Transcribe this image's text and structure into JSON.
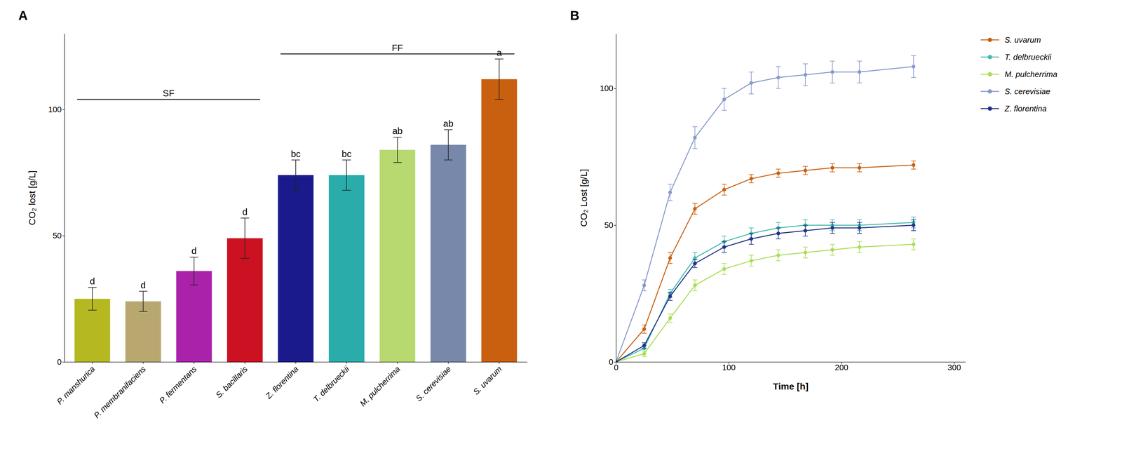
{
  "chart_data": [
    {
      "type": "bar",
      "title": "A",
      "categories": [
        "P. manshurica",
        "P. membranifaciens",
        "P. fermentans",
        "S. bacillaris",
        "Z. florentina",
        "T. delbrueckii",
        "M. pulcherrima",
        "S. cerevisiae",
        "S. uvarum"
      ],
      "values": [
        25,
        24,
        36,
        49,
        74,
        74,
        84,
        86,
        112
      ],
      "errors": [
        4.5,
        4.0,
        5.5,
        8,
        6,
        6,
        5,
        6,
        8
      ],
      "colors": [
        "#b5b820",
        "#b8a870",
        "#aa22aa",
        "#cc1122",
        "#1a1a8c",
        "#2aacaa",
        "#b8d870",
        "#7888aa",
        "#c86010"
      ],
      "significance": [
        "d",
        "d",
        "d",
        "d",
        "bc",
        "bc",
        "ab",
        "ab",
        "a"
      ],
      "brackets": [
        {
          "label": "SF",
          "y": 104,
          "from": "P. manshurica",
          "to": "S. bacillaris"
        },
        {
          "label": "FF",
          "y": 122,
          "from": "Z. florentina",
          "to": "S. uvarum"
        }
      ],
      "ylabel": "CO₂ lost [g/L]",
      "ylim": [
        0,
        130
      ],
      "yticks": [
        0,
        50,
        100
      ],
      "grid": false
    },
    {
      "type": "line",
      "title": "B",
      "xlabel": "Time [h]",
      "ylabel": "CO₂ Lost [g/L]",
      "xlim": [
        0,
        310
      ],
      "ylim": [
        0,
        120
      ],
      "xticks": [
        0,
        100,
        200,
        300
      ],
      "yticks": [
        0,
        50,
        100
      ],
      "grid": false,
      "legend": "right",
      "marker": "circle",
      "line_style": "solid",
      "series": [
        {
          "name": "S. uvarum",
          "color": "#c86010",
          "x": [
            0,
            25,
            48,
            70,
            96,
            120,
            144,
            168,
            192,
            216,
            264
          ],
          "values": [
            0,
            12,
            38,
            56,
            63,
            67,
            69,
            70,
            71,
            71,
            72
          ],
          "errors": [
            0,
            1.5,
            2,
            2,
            2,
            1.5,
            1.5,
            1.5,
            1.5,
            1.5,
            1.5
          ]
        },
        {
          "name": "T. delbrueckii",
          "color": "#44bbaa",
          "x": [
            0,
            25,
            48,
            70,
            96,
            120,
            144,
            168,
            192,
            216,
            264
          ],
          "values": [
            0,
            5,
            25,
            38,
            44,
            47,
            49,
            50,
            50,
            50,
            51
          ],
          "errors": [
            0,
            1,
            1.5,
            2,
            2,
            2,
            2,
            2,
            2,
            2,
            2
          ]
        },
        {
          "name": "M. pulcherrima",
          "color": "#aadd55",
          "x": [
            0,
            25,
            48,
            70,
            96,
            120,
            144,
            168,
            192,
            216,
            264
          ],
          "values": [
            0,
            3,
            16,
            28,
            34,
            37,
            39,
            40,
            41,
            42,
            43
          ],
          "errors": [
            0,
            1,
            1.5,
            2,
            2,
            2,
            2,
            2,
            2,
            2,
            2
          ]
        },
        {
          "name": "S. cerevisiae",
          "color": "#8899cc",
          "x": [
            0,
            25,
            48,
            70,
            96,
            120,
            144,
            168,
            192,
            216,
            264
          ],
          "values": [
            0,
            28,
            62,
            82,
            96,
            102,
            104,
            105,
            106,
            106,
            108
          ],
          "errors": [
            0,
            2,
            3,
            4,
            4,
            4,
            4,
            4,
            4,
            4,
            4
          ]
        },
        {
          "name": "Z. florentina",
          "color": "#223388",
          "x": [
            0,
            25,
            48,
            70,
            96,
            120,
            144,
            168,
            192,
            216,
            264
          ],
          "values": [
            0,
            6,
            24,
            36,
            42,
            45,
            47,
            48,
            49,
            49,
            50
          ],
          "errors": [
            0,
            1,
            1.5,
            1.5,
            2,
            2,
            2,
            2,
            2,
            2,
            2
          ]
        }
      ]
    }
  ]
}
